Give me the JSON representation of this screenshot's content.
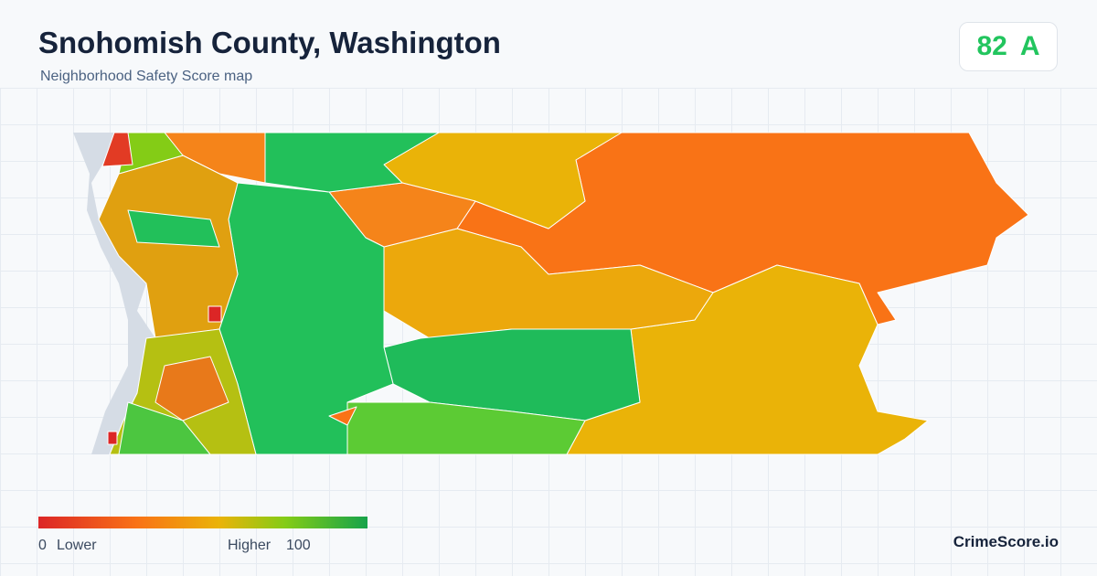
{
  "header": {
    "title": "Snohomish County, Washington",
    "subtitle": "Neighborhood Safety Score map"
  },
  "score": {
    "value": 82,
    "grade": "A"
  },
  "legend": {
    "min": 0,
    "min_label": "Lower",
    "max_label": "Higher",
    "max": 100
  },
  "brand": "CrimeScore.io"
}
